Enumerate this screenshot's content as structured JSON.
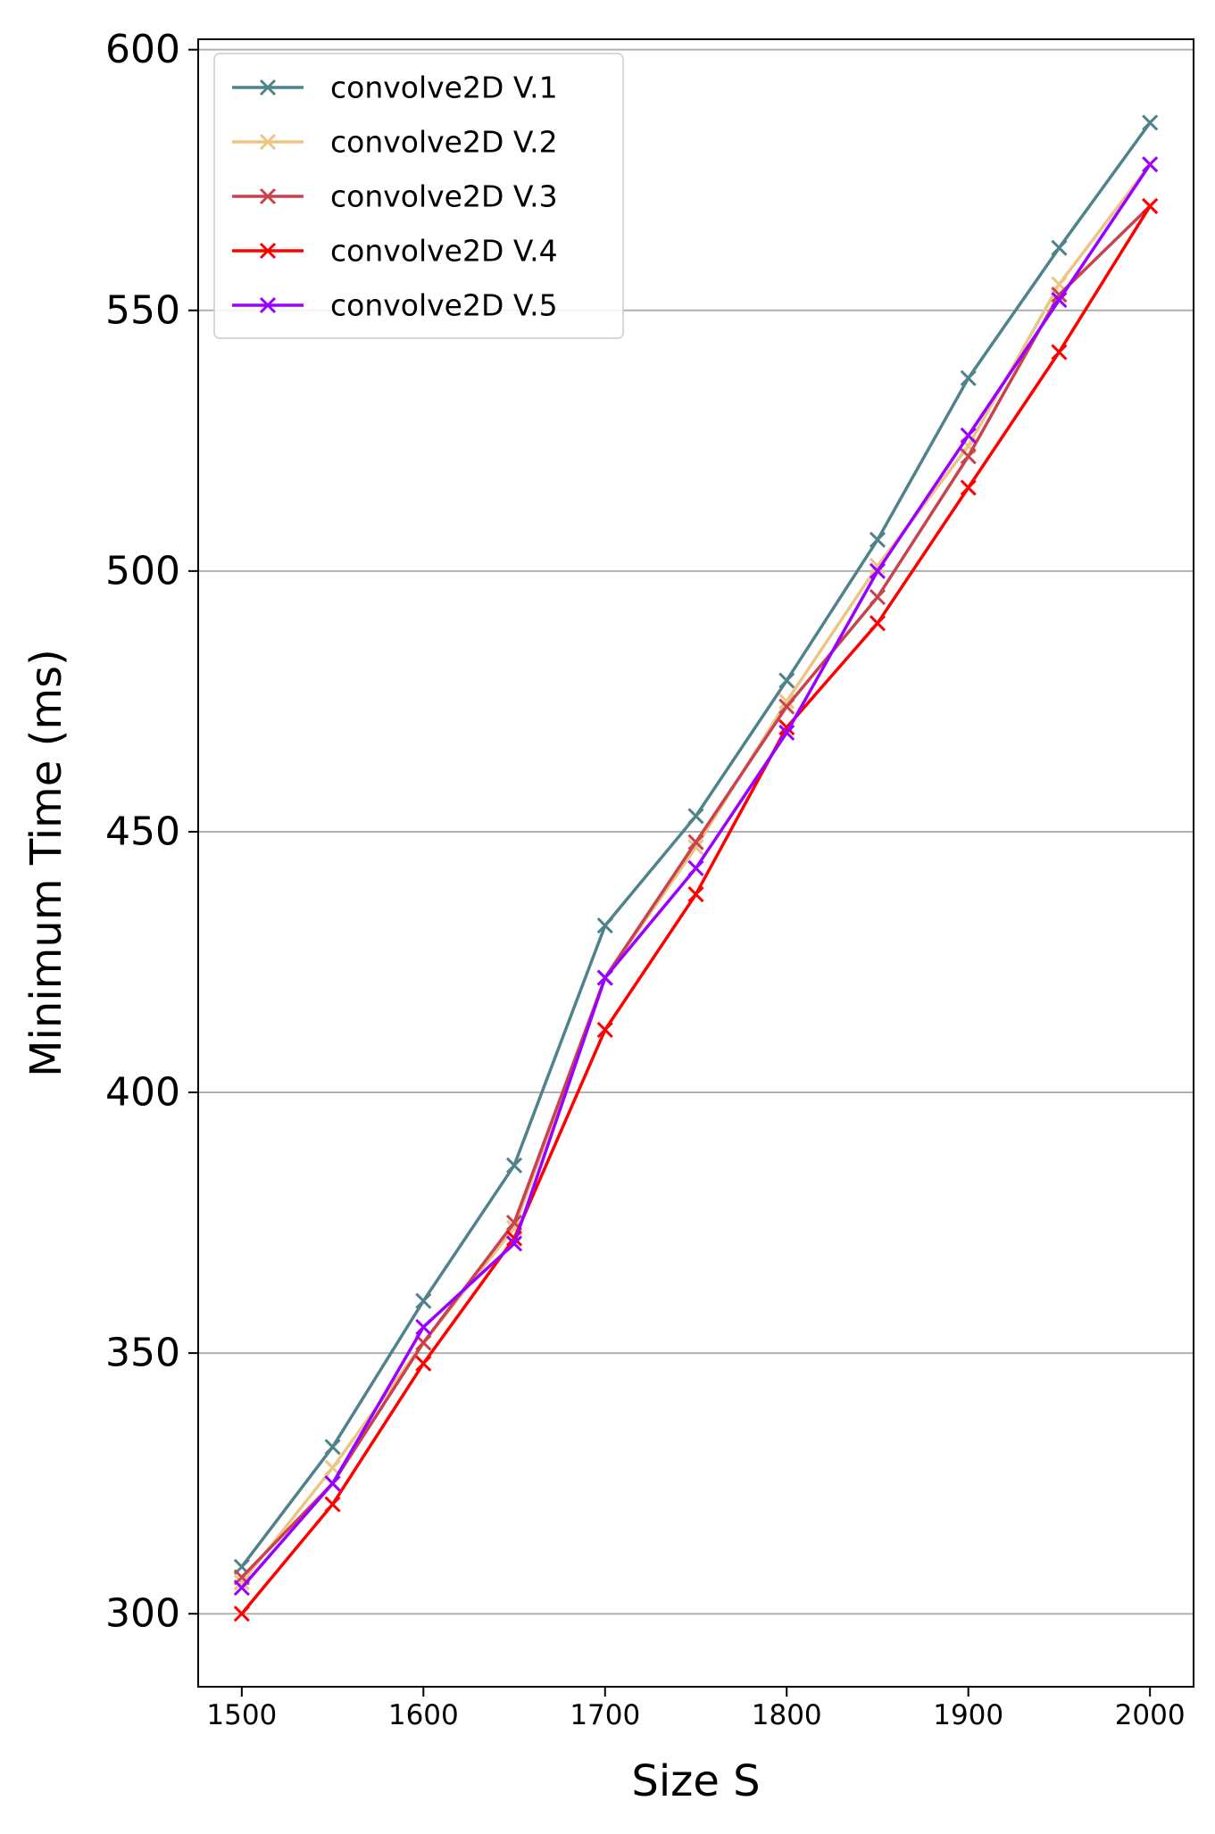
{
  "chart_data": {
    "type": "line",
    "title": "",
    "xlabel": "Size S",
    "ylabel": "Minimum Time (ms)",
    "x": [
      1500,
      1550,
      1600,
      1650,
      1700,
      1750,
      1800,
      1850,
      1900,
      1950,
      2000
    ],
    "xlim": [
      1476,
      2024
    ],
    "ylim": [
      286,
      602
    ],
    "xticks": [
      1500,
      1600,
      1700,
      1800,
      1900,
      2000
    ],
    "xtick_labels": [
      "1500",
      "1600",
      "1700",
      "1800",
      "1900",
      "2000"
    ],
    "yticks": [
      300,
      350,
      400,
      450,
      500,
      550,
      600
    ],
    "ytick_labels": [
      "300",
      "350",
      "400",
      "450",
      "500",
      "550",
      "600"
    ],
    "grid": "horizontal",
    "legend_position": "upper-left",
    "marker": "x",
    "series": [
      {
        "name": "convolve2D V.1",
        "color": "#4e838c",
        "values": [
          309,
          332,
          360,
          386,
          432,
          453,
          479,
          506,
          537,
          562,
          586
        ]
      },
      {
        "name": "convolve2D V.2",
        "color": "#ebc584",
        "values": [
          306,
          328,
          352,
          374,
          422,
          447,
          475,
          501,
          524,
          555,
          578
        ]
      },
      {
        "name": "convolve2D V.3",
        "color": "#c8434e",
        "values": [
          307,
          325,
          352,
          375,
          422,
          448,
          474,
          495,
          522,
          553,
          570
        ]
      },
      {
        "name": "convolve2D V.4",
        "color": "#ff0000",
        "values": [
          300,
          321,
          348,
          372,
          412,
          438,
          470,
          490,
          516,
          542,
          570
        ]
      },
      {
        "name": "convolve2D V.5",
        "color": "#9a00ff",
        "values": [
          305,
          325,
          355,
          371,
          422,
          443,
          469,
          500,
          526,
          552,
          578
        ]
      }
    ]
  }
}
